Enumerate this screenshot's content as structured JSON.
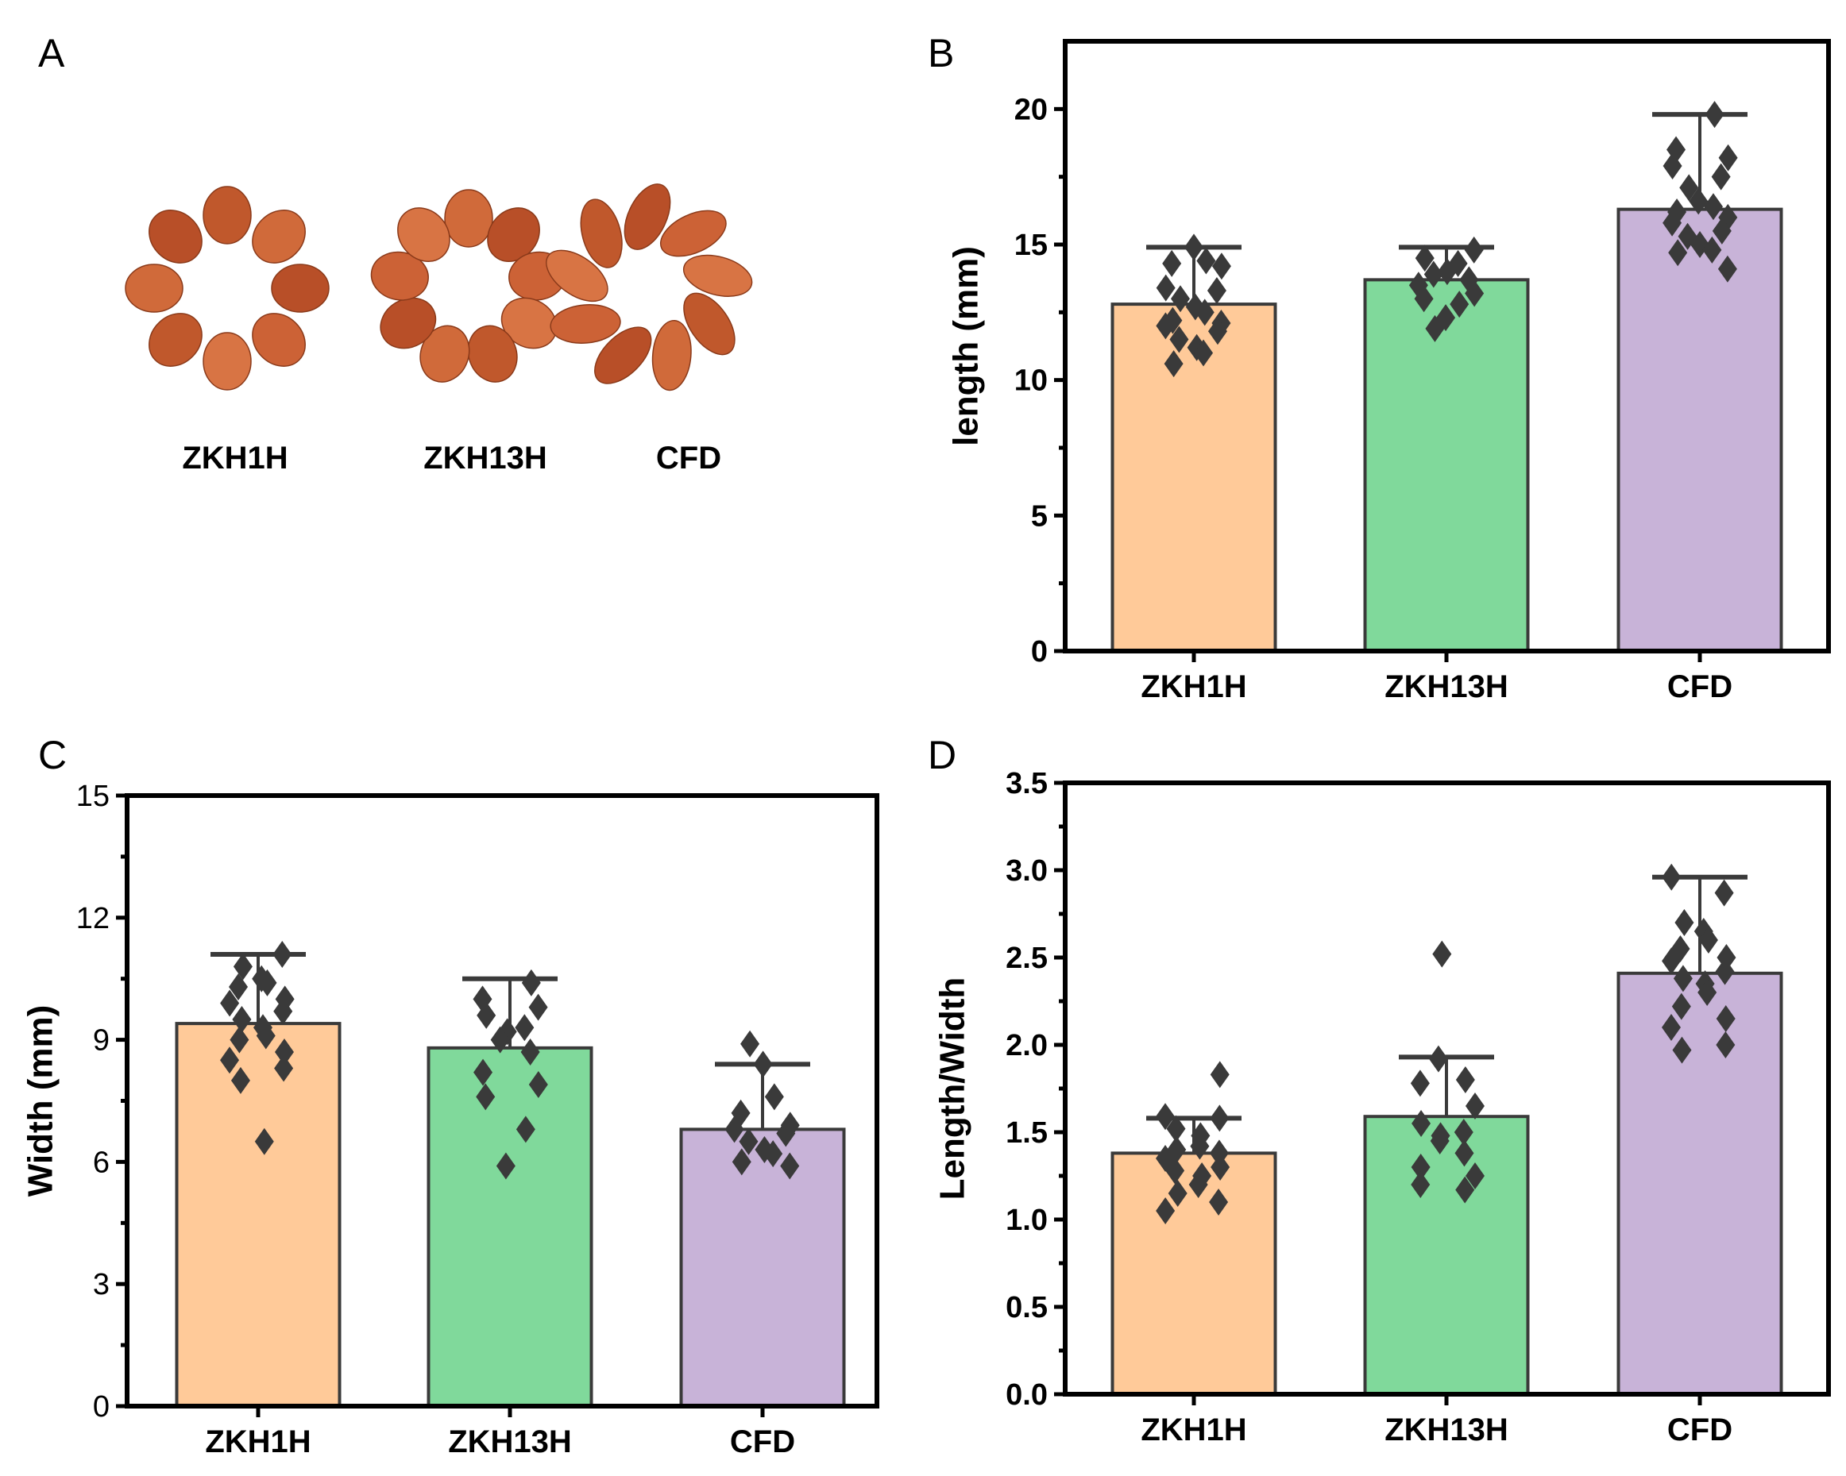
{
  "panel_labels": [
    "A",
    "B",
    "C",
    "D"
  ],
  "panel_a": {
    "varieties": [
      "ZKH1H",
      "ZKH13H",
      "CFD"
    ],
    "seed_color": "#c8683a"
  },
  "colors": {
    "ZKH1H": "#ffca99",
    "ZKH13H": "#80d99b",
    "CFD": "#c8b3d8",
    "points": "#3a3a3a",
    "edge": "#3a3a3a"
  },
  "chart_data": [
    {
      "panel": "B",
      "type": "bar",
      "categories": [
        "ZKH1H",
        "ZKH13H",
        "CFD"
      ],
      "ylabel": "length (mm)",
      "ylim": [
        0,
        22.5
      ],
      "yticks": [
        0,
        5,
        10,
        15,
        20
      ],
      "tick_labels": [
        "0",
        "5",
        "10",
        "15",
        "20"
      ],
      "values": [
        12.8,
        13.7,
        16.3
      ],
      "error_upper": [
        14.9,
        14.9,
        19.8
      ],
      "points": [
        [
          14.9,
          14.4,
          14.3,
          14.2,
          13.4,
          13.3,
          13.0,
          12.7,
          12.5,
          12.2,
          12.1,
          12.0,
          11.8,
          11.5,
          11.2,
          11.0,
          10.6
        ],
        [
          14.8,
          14.5,
          14.3,
          14.0,
          13.9,
          13.7,
          13.5,
          13.2,
          13.0,
          12.8,
          12.3,
          11.9
        ],
        [
          19.8,
          18.5,
          18.2,
          17.9,
          17.5,
          17.1,
          16.6,
          16.4,
          16.2,
          16.0,
          15.8,
          15.5,
          15.3,
          15.0,
          14.8,
          14.7,
          14.1
        ]
      ]
    },
    {
      "panel": "C",
      "type": "bar",
      "categories": [
        "ZKH1H",
        "ZKH13H",
        "CFD"
      ],
      "ylabel": "Width (mm)",
      "ylim": [
        0,
        15
      ],
      "yticks": [
        0,
        3,
        6,
        9,
        12,
        15
      ],
      "tick_labels": [
        "0",
        "3",
        "6",
        "9",
        "12",
        "15"
      ],
      "values": [
        9.4,
        8.8,
        6.8
      ],
      "error_upper": [
        11.1,
        10.5,
        8.4
      ],
      "points": [
        [
          11.1,
          10.8,
          10.5,
          10.4,
          10.3,
          10.0,
          9.9,
          9.7,
          9.5,
          9.3,
          9.1,
          9.0,
          8.7,
          8.5,
          8.3,
          8.0,
          6.5
        ],
        [
          10.4,
          10.0,
          9.8,
          9.6,
          9.3,
          9.2,
          9.0,
          8.7,
          8.2,
          7.9,
          7.6,
          6.8,
          5.9
        ],
        [
          8.9,
          8.4,
          7.6,
          7.2,
          6.9,
          6.8,
          6.7,
          6.5,
          6.3,
          6.2,
          6.0,
          5.9
        ]
      ]
    },
    {
      "panel": "D",
      "type": "bar",
      "categories": [
        "ZKH1H",
        "ZKH13H",
        "CFD"
      ],
      "ylabel": "Length/Width",
      "ylim": [
        0,
        3.5
      ],
      "yticks": [
        0,
        0.5,
        1.0,
        1.5,
        2.0,
        2.5,
        3.0,
        3.5
      ],
      "tick_labels": [
        "0.0",
        "0.5",
        "1.0",
        "1.5",
        "2.0",
        "2.5",
        "3.0",
        "3.5"
      ],
      "values": [
        1.38,
        1.59,
        2.41
      ],
      "error_upper": [
        1.58,
        1.93,
        2.96
      ],
      "points": [
        [
          1.83,
          1.59,
          1.58,
          1.52,
          1.48,
          1.42,
          1.4,
          1.38,
          1.35,
          1.3,
          1.28,
          1.25,
          1.2,
          1.15,
          1.1,
          1.05
        ],
        [
          2.52,
          1.92,
          1.8,
          1.78,
          1.65,
          1.55,
          1.5,
          1.48,
          1.45,
          1.38,
          1.3,
          1.25,
          1.2,
          1.17
        ],
        [
          2.96,
          2.87,
          2.7,
          2.65,
          2.6,
          2.55,
          2.5,
          2.48,
          2.42,
          2.38,
          2.35,
          2.3,
          2.22,
          2.15,
          2.1,
          2.0,
          1.97
        ]
      ]
    }
  ]
}
